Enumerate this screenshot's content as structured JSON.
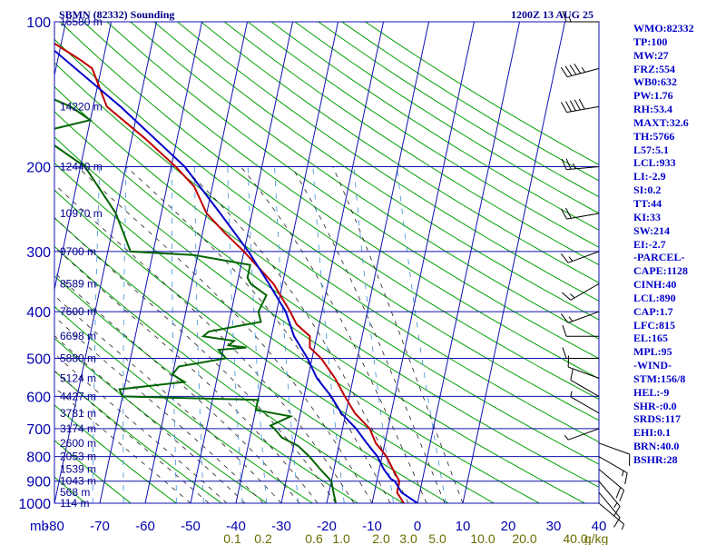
{
  "header": {
    "station": "SBMN (82332) Sounding",
    "time": "1200Z 13 AUG 25"
  },
  "indices": [
    "WMO:82332",
    "TP:100",
    "MW:27",
    "FRZ:554",
    "WB0:632",
    "PW:1.76",
    "RH:53.4",
    "MAXT:32.6",
    "TH:5766",
    "L57:5.1",
    "LCL:933",
    "LI:-2.9",
    "SI:0.2",
    "TT:44",
    "KI:33",
    "SW:214",
    "EI:-2.7",
    "-PARCEL-",
    "CAPE:1128",
    "CINH:40",
    "LCL:890",
    "CAP:1.7",
    "LFC:815",
    "EL:165",
    "MPL:95",
    "-WIND-",
    "STM:156/8",
    "HEL:-9",
    "SHR-:0.0",
    "SRDS:117",
    "EHI:0.1",
    "BRN:40.0",
    "BSHR:28"
  ],
  "chart_data": {
    "type": "line",
    "title": "SBMN (82332) Sounding",
    "xlabel": "",
    "ylabel": "mb",
    "xlim": [
      -80,
      40
    ],
    "ylim": [
      1000,
      100
    ],
    "y_scale": "log-pressure (skew-T)",
    "grid": true,
    "pressure_ticks": [
      100,
      200,
      300,
      400,
      500,
      600,
      700,
      800,
      900,
      1000
    ],
    "pressure_tick_labels": [
      "100",
      "200",
      "300",
      "400",
      "500",
      "600",
      "700",
      "800",
      "900",
      "1000"
    ],
    "temperature_ticks": [
      -80,
      -70,
      -60,
      -50,
      -40,
      -30,
      -20,
      -10,
      0,
      10,
      20,
      30,
      40
    ],
    "temperature_tick_labels": [
      "-80",
      "-70",
      "-60",
      "-50",
      "-40",
      "-30",
      "-20",
      "-10",
      "0",
      "10",
      "20",
      "30",
      "40"
    ],
    "axis_unit_label": "mb",
    "height_labels": [
      {
        "p": 100,
        "label": "16580 m"
      },
      {
        "p": 150,
        "label": "14220 m"
      },
      {
        "p": 200,
        "label": "12440 m"
      },
      {
        "p": 250,
        "label": "10970 m"
      },
      {
        "p": 300,
        "label": "9700 m"
      },
      {
        "p": 350,
        "label": "8589 m"
      },
      {
        "p": 400,
        "label": "7600 m"
      },
      {
        "p": 450,
        "label": "6698 m"
      },
      {
        "p": 500,
        "label": "5880 m"
      },
      {
        "p": 550,
        "label": "5124 m"
      },
      {
        "p": 600,
        "label": "4427 m"
      },
      {
        "p": 650,
        "label": "3781 m"
      },
      {
        "p": 700,
        "label": "3174 m"
      },
      {
        "p": 750,
        "label": "2600 m"
      },
      {
        "p": 800,
        "label": "2053 m"
      },
      {
        "p": 850,
        "label": "1539 m"
      },
      {
        "p": 900,
        "label": "1043 m"
      },
      {
        "p": 950,
        "label": "568 m"
      },
      {
        "p": 1000,
        "label": "114 m"
      }
    ],
    "mixing_ratio_labels": [
      "0.1",
      "0.2",
      "0.6",
      "1.0",
      "2.0",
      "3.0",
      "5.0",
      "10.0",
      "20.0",
      "40.0",
      "g/kg"
    ],
    "series": [
      {
        "name": "",
        "role": "temperature",
        "color": "#c00000",
        "points": [
          [
            100,
            -80
          ],
          [
            120,
            -65
          ],
          [
            125,
            -62
          ],
          [
            150,
            -57
          ],
          [
            175,
            -47
          ],
          [
            200,
            -39
          ],
          [
            220,
            -34
          ],
          [
            250,
            -30
          ],
          [
            275,
            -25
          ],
          [
            300,
            -20
          ],
          [
            350,
            -12
          ],
          [
            400,
            -7
          ],
          [
            425,
            -5
          ],
          [
            450,
            -1.5
          ],
          [
            475,
            -1
          ],
          [
            500,
            2
          ],
          [
            550,
            6
          ],
          [
            600,
            9
          ],
          [
            650,
            12
          ],
          [
            700,
            16
          ],
          [
            750,
            18
          ],
          [
            800,
            21
          ],
          [
            850,
            23
          ],
          [
            900,
            25
          ],
          [
            950,
            25
          ],
          [
            1000,
            27
          ]
        ]
      },
      {
        "name": "",
        "role": "dewpoint",
        "color": "#006400",
        "points": [
          [
            125,
            -80
          ],
          [
            140,
            -73
          ],
          [
            150,
            -65
          ],
          [
            160,
            -60
          ],
          [
            170,
            -71
          ],
          [
            180,
            -67
          ],
          [
            200,
            -59
          ],
          [
            250,
            -50
          ],
          [
            300,
            -45
          ],
          [
            305,
            -31
          ],
          [
            320,
            -18
          ],
          [
            340,
            -18
          ],
          [
            350,
            -17
          ],
          [
            370,
            -13
          ],
          [
            400,
            -14
          ],
          [
            420,
            -13
          ],
          [
            440,
            -24
          ],
          [
            450,
            -25
          ],
          [
            460,
            -18
          ],
          [
            470,
            -19
          ],
          [
            475,
            -15
          ],
          [
            480,
            -21
          ],
          [
            490,
            -20
          ],
          [
            500,
            -19
          ],
          [
            520,
            -29
          ],
          [
            540,
            -30
          ],
          [
            560,
            -27
          ],
          [
            580,
            -41
          ],
          [
            600,
            -40
          ],
          [
            610,
            -10
          ],
          [
            640,
            -10
          ],
          [
            660,
            -2
          ],
          [
            690,
            -6
          ],
          [
            700,
            -5
          ],
          [
            730,
            -3
          ],
          [
            760,
            1
          ],
          [
            800,
            4
          ],
          [
            850,
            7
          ],
          [
            900,
            10
          ],
          [
            950,
            11
          ],
          [
            1000,
            12
          ]
        ]
      },
      {
        "name": "",
        "role": "parcel",
        "color": "#0000c8",
        "points": [
          [
            100,
            -80
          ],
          [
            150,
            -54
          ],
          [
            200,
            -37
          ],
          [
            250,
            -27
          ],
          [
            300,
            -19
          ],
          [
            350,
            -13
          ],
          [
            400,
            -8
          ],
          [
            450,
            -5
          ],
          [
            500,
            -1
          ],
          [
            550,
            2
          ],
          [
            600,
            6
          ],
          [
            650,
            9
          ],
          [
            700,
            13
          ],
          [
            750,
            16
          ],
          [
            800,
            19
          ],
          [
            850,
            21
          ],
          [
            890,
            23
          ],
          [
            900,
            24
          ],
          [
            950,
            26
          ],
          [
            1000,
            30
          ]
        ]
      }
    ],
    "wind_profile": [
      {
        "p": 100,
        "dir": 270,
        "speed": 15
      },
      {
        "p": 125,
        "dir": 255,
        "speed": 45
      },
      {
        "p": 150,
        "dir": 260,
        "speed": 50
      },
      {
        "p": 200,
        "dir": 265,
        "speed": 25
      },
      {
        "p": 250,
        "dir": 260,
        "speed": 20
      },
      {
        "p": 300,
        "dir": 250,
        "speed": 15
      },
      {
        "p": 350,
        "dir": 240,
        "speed": 15
      },
      {
        "p": 400,
        "dir": 250,
        "speed": 15
      },
      {
        "p": 450,
        "dir": 270,
        "speed": 10
      },
      {
        "p": 500,
        "dir": 270,
        "speed": 10
      },
      {
        "p": 550,
        "dir": 290,
        "speed": 10
      },
      {
        "p": 600,
        "dir": 300,
        "speed": 10
      },
      {
        "p": 650,
        "dir": 300,
        "speed": 5
      },
      {
        "p": 700,
        "dir": 250,
        "speed": 5
      },
      {
        "p": 750,
        "dir": 110,
        "speed": 10
      },
      {
        "p": 800,
        "dir": 120,
        "speed": 15
      },
      {
        "p": 850,
        "dir": 130,
        "speed": 20
      },
      {
        "p": 900,
        "dir": 140,
        "speed": 15
      },
      {
        "p": 950,
        "dir": 140,
        "speed": 10
      },
      {
        "p": 1000,
        "dir": 130,
        "speed": 5
      }
    ],
    "colors": {
      "isobar": "#1010b0",
      "isotherm": "#1010b0",
      "dry_adiabat": "#00a000",
      "moist_adiabat": "#202020",
      "mixing_ratio": "#3b8fd8",
      "wind": "#000000"
    }
  }
}
